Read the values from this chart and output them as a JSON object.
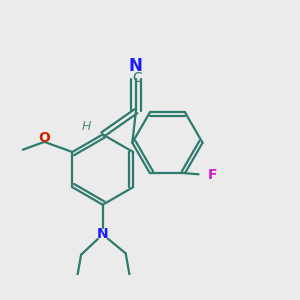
{
  "bg_color": "#ebebeb",
  "bond_color": "#2d7a6e",
  "cn_color": "#1a1aff",
  "n_color": "#1a1aff",
  "o_color": "#cc2200",
  "f_color": "#cc22cc",
  "h_color": "#5a8a82",
  "lw": 1.6,
  "dbo": 0.018,
  "fs": 10,
  "xlim": [
    -1.1,
    1.1
  ],
  "ylim": [
    -1.0,
    0.85
  ]
}
